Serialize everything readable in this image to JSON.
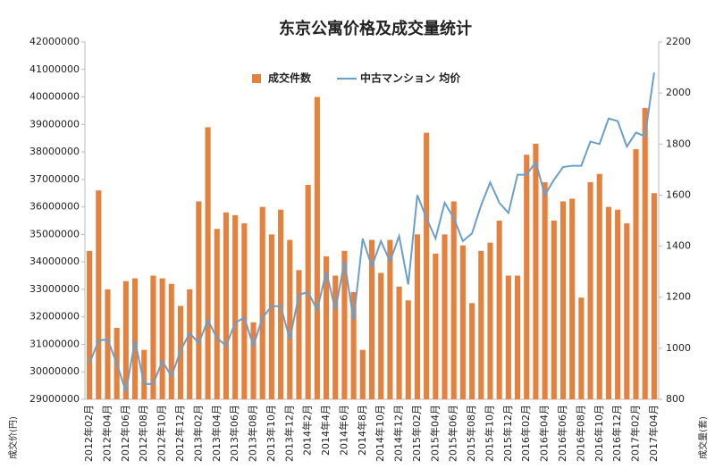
{
  "chart_data": {
    "type": "bar_line",
    "title": "东京公寓价格及成交量统计",
    "y_label": "成交价(円)",
    "y2_label": "成交量(套)",
    "categories": [
      "2012年02月",
      null,
      "2012年04月",
      null,
      "2012年06月",
      null,
      "2012年08月",
      null,
      "2012年10月",
      null,
      "2012年12月",
      null,
      "2013年02月",
      null,
      "2013年04月",
      null,
      "2013年06月",
      null,
      "2013年08月",
      null,
      "2013年10月",
      null,
      "2013年12月",
      null,
      "2014年2月",
      null,
      "2014年4月",
      null,
      "2014年6月",
      null,
      "2014年8月",
      null,
      "2014年10月",
      null,
      "2014年12月",
      null,
      "2015年02月",
      null,
      "2015年04月",
      null,
      "2015年06月",
      null,
      "2015年08月",
      null,
      "2015年10月",
      null,
      "2015年12月",
      null,
      "2016年02月",
      null,
      "2016年04月",
      null,
      "2016年06月",
      null,
      "2016年08月",
      null,
      "2016年10月",
      null,
      "2016年12月",
      null,
      "2017年02月",
      null,
      "2017年04月"
    ],
    "series": [
      {
        "name": "成交件数",
        "type": "bar",
        "color": "#e5813e",
        "values": [
          34400000,
          36600000,
          33000000,
          31600000,
          33300000,
          33400000,
          30800000,
          33500000,
          33400000,
          33200000,
          32400000,
          33000000,
          36200000,
          38900000,
          35200000,
          35800000,
          35700000,
          35400000,
          31800000,
          36000000,
          35000000,
          35900000,
          34800000,
          33700000,
          36800000,
          40000000,
          34200000,
          33500000,
          34400000,
          32900000,
          30800000,
          34800000,
          33600000,
          34800000,
          33100000,
          32600000,
          35000000,
          38700000,
          34300000,
          35000000,
          36200000,
          34600000,
          32500000,
          34400000,
          34700000,
          35500000,
          33500000,
          33500000,
          37900000,
          38300000,
          36900000,
          35500000,
          36200000,
          36300000,
          32700000,
          36900000,
          37200000,
          36000000,
          35900000,
          35400000,
          38100000,
          39600000,
          36500000
        ]
      },
      {
        "name": "中古マンション 均价",
        "type": "line",
        "axis": "y2",
        "color": "#6b9fc9",
        "values": [
          940,
          1030,
          1035,
          940,
          830,
          1030,
          860,
          860,
          950,
          890,
          990,
          1060,
          1020,
          1110,
          1040,
          1010,
          1100,
          1120,
          1010,
          1120,
          1165,
          1165,
          1035,
          1210,
          1220,
          1150,
          1300,
          1150,
          1340,
          1110,
          1430,
          1320,
          1420,
          1340,
          1440,
          1250,
          1600,
          1510,
          1430,
          1570,
          1510,
          1420,
          1450,
          1560,
          1650,
          1570,
          1530,
          1680,
          1680,
          1730,
          1600,
          1660,
          1710,
          1715,
          1715,
          1810,
          1800,
          1900,
          1890,
          1790,
          1845,
          1830,
          2080
        ]
      }
    ],
    "ylim": [
      29000000,
      42000000
    ],
    "yticks": [
      29000000,
      30000000,
      31000000,
      32000000,
      33000000,
      34000000,
      35000000,
      36000000,
      37000000,
      38000000,
      39000000,
      40000000,
      41000000,
      42000000
    ],
    "y2lim": [
      800,
      2200
    ],
    "y2ticks": [
      800,
      1000,
      1200,
      1400,
      1600,
      1800,
      2000,
      2200
    ]
  }
}
